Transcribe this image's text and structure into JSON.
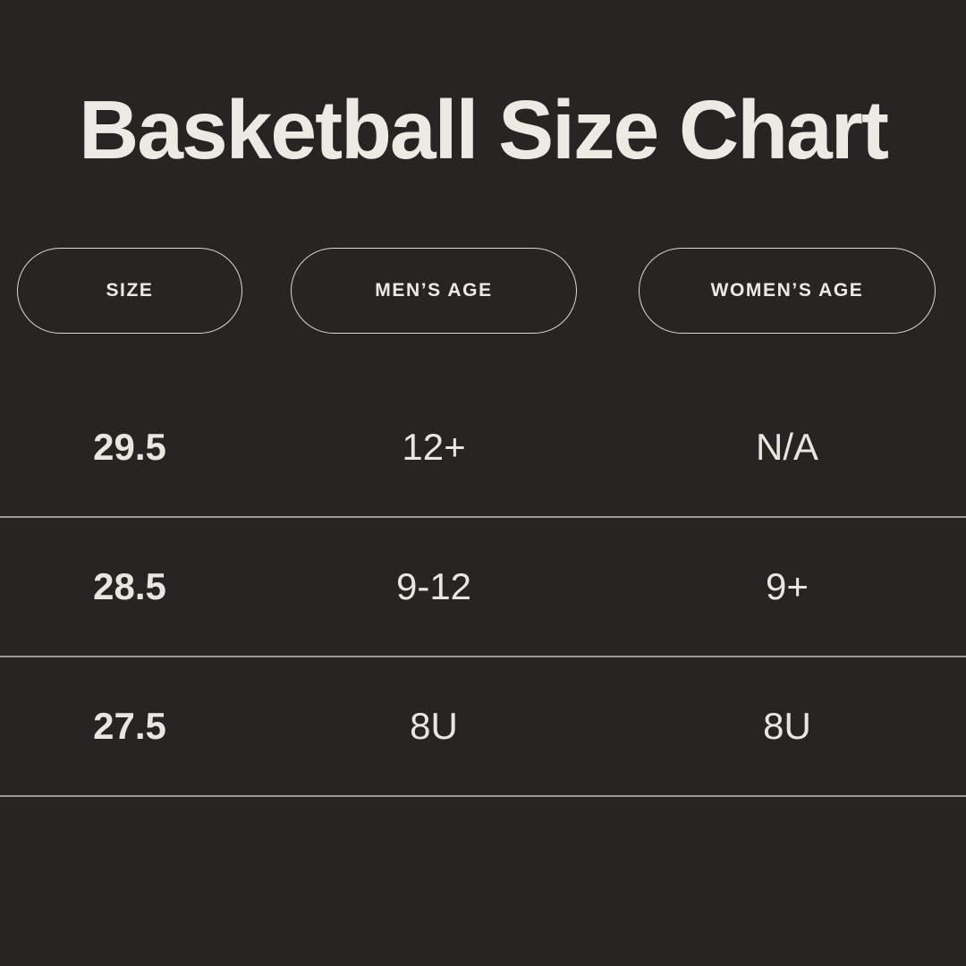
{
  "page": {
    "background_color": "#272424",
    "text_color": "#edeae3",
    "divider_color": "#dedad3"
  },
  "chart_data": {
    "type": "table",
    "title": "Basketball Size Chart",
    "columns": [
      "SIZE",
      "MEN’S AGE",
      "WOMEN’S AGE"
    ],
    "rows": [
      [
        "29.5",
        "12+",
        "N/A"
      ],
      [
        "28.5",
        "9-12",
        "9+"
      ],
      [
        "27.5",
        "8U",
        "8U"
      ]
    ],
    "layout_hints": {
      "header_style": "outlined pill capsules",
      "grid": "horizontal dividers between rows",
      "size_column_bold": true
    }
  }
}
